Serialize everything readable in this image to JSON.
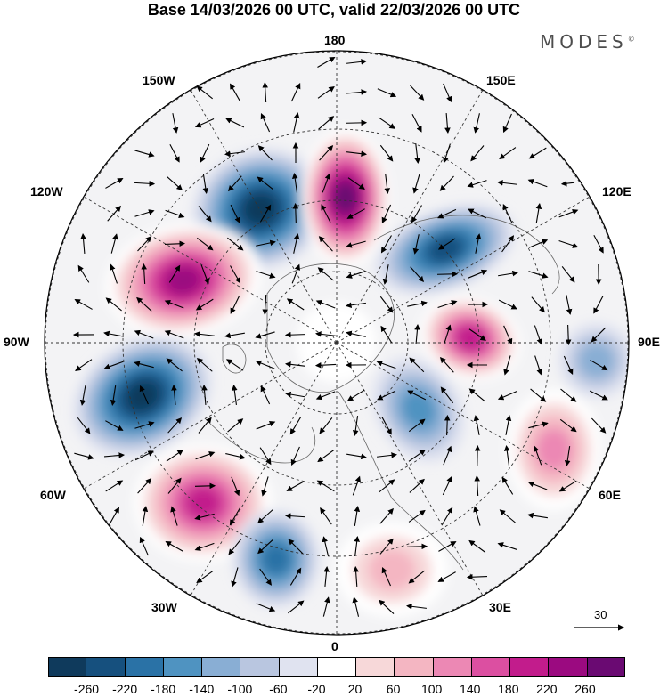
{
  "title": "Base 14/03/2026 00 UTC, valid 22/03/2026 00 UTC",
  "brand": "MODES",
  "brand_mark": "©",
  "longitude_labels": {
    "top": "180",
    "bottom": "0",
    "left": "90W",
    "right": "90E",
    "upper_left_1": "150W",
    "upper_left_2": "120W",
    "lower_left_1": "60W",
    "lower_left_2": "30W",
    "upper_right_1": "150E",
    "upper_right_2": "120E",
    "lower_right_1": "60E",
    "lower_right_2": "30E"
  },
  "reference_vector": "30",
  "colorbar": {
    "colors": [
      "#0f3a5c",
      "#16507e",
      "#2a72a6",
      "#4f93c1",
      "#89aed4",
      "#b9c6e0",
      "#e0e3f0",
      "#ffffff",
      "#f7d8d9",
      "#f4b6c2",
      "#ec88b4",
      "#dc4fa1",
      "#c21c8c",
      "#9b0a80",
      "#6a0a72"
    ],
    "ticks": [
      "-260",
      "-220",
      "-180",
      "-140",
      "-100",
      "-60",
      "-20",
      "20",
      "60",
      "100",
      "140",
      "180",
      "220",
      "260"
    ]
  },
  "anomaly_centers": [
    {
      "id": "ne-pacific-low",
      "value": -240
    },
    {
      "id": "bering-high",
      "value": 260
    },
    {
      "id": "alaska-high",
      "value": 240
    },
    {
      "id": "siberia-low",
      "value": -180
    },
    {
      "id": "kara-high",
      "value": 180
    },
    {
      "id": "canada-low",
      "value": -240
    },
    {
      "id": "atlantic-high",
      "value": 200
    },
    {
      "id": "caspian-high",
      "value": 100
    },
    {
      "id": "iberia-low",
      "value": -140
    },
    {
      "id": "europe-low",
      "value": -100
    },
    {
      "id": "central-asia-low",
      "value": -80
    },
    {
      "id": "mediterranean-high",
      "value": 60
    }
  ]
}
